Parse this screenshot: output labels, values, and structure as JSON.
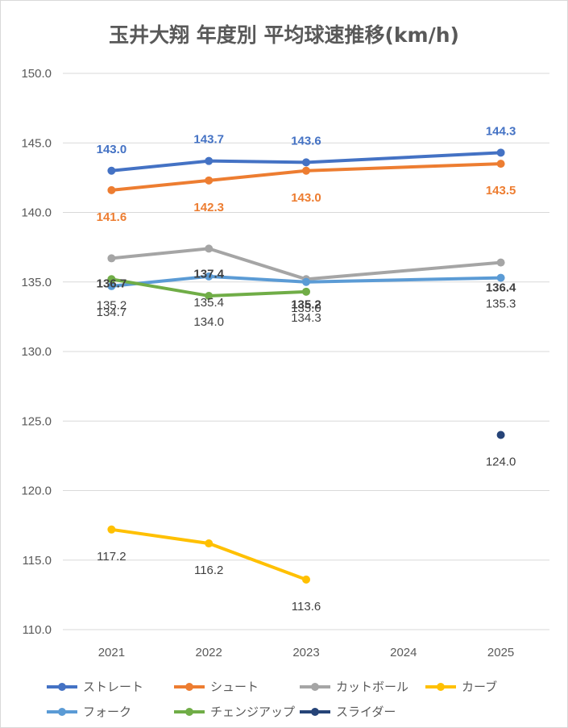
{
  "chart_data": {
    "type": "line",
    "title": "玉井大翔 年度別 平均球速推移(km/h)",
    "xlabel": "",
    "ylabel": "",
    "categories": [
      "2021",
      "2022",
      "2023",
      "2024",
      "2025"
    ],
    "ylim": [
      110,
      150
    ],
    "yticks": [
      "110.0",
      "115.0",
      "120.0",
      "125.0",
      "130.0",
      "135.0",
      "140.0",
      "145.0",
      "150.0"
    ],
    "grid": true,
    "legend_position": "bottom",
    "series": [
      {
        "name": "ストレート",
        "color": "#4472c4",
        "values": [
          143.0,
          143.7,
          143.6,
          null,
          144.3
        ],
        "label_color": "#4472c4",
        "label_pos": "above",
        "bold": true
      },
      {
        "name": "シュート",
        "color": "#ed7d31",
        "values": [
          141.6,
          142.3,
          143.0,
          null,
          143.5
        ],
        "label_color": "#ed7d31",
        "label_pos": "below",
        "bold": true
      },
      {
        "name": "カットボール",
        "color": "#a5a5a5",
        "values": [
          136.7,
          137.4,
          135.2,
          null,
          136.4
        ],
        "label_color": "#404040",
        "label_pos": "label",
        "bold": true
      },
      {
        "name": "カーブ",
        "color": "#ffc000",
        "values": [
          117.2,
          116.2,
          113.6,
          null,
          null
        ],
        "label_color": "#404040",
        "label_pos": "below",
        "bold": false
      },
      {
        "name": "フォーク",
        "color": "#5b9bd5",
        "values": [
          134.7,
          135.4,
          135.0,
          null,
          135.3
        ],
        "label_color": "#404040",
        "label_pos": "label",
        "bold": false
      },
      {
        "name": "チェンジアップ",
        "color": "#70ad47",
        "values": [
          135.2,
          134.0,
          134.3,
          null,
          null
        ],
        "label_color": "#404040",
        "label_pos": "label",
        "bold": false
      },
      {
        "name": "スライダー",
        "color": "#264478",
        "values": [
          null,
          null,
          null,
          null,
          124.0
        ],
        "label_color": "#404040",
        "label_pos": "below",
        "bold": false
      }
    ]
  }
}
